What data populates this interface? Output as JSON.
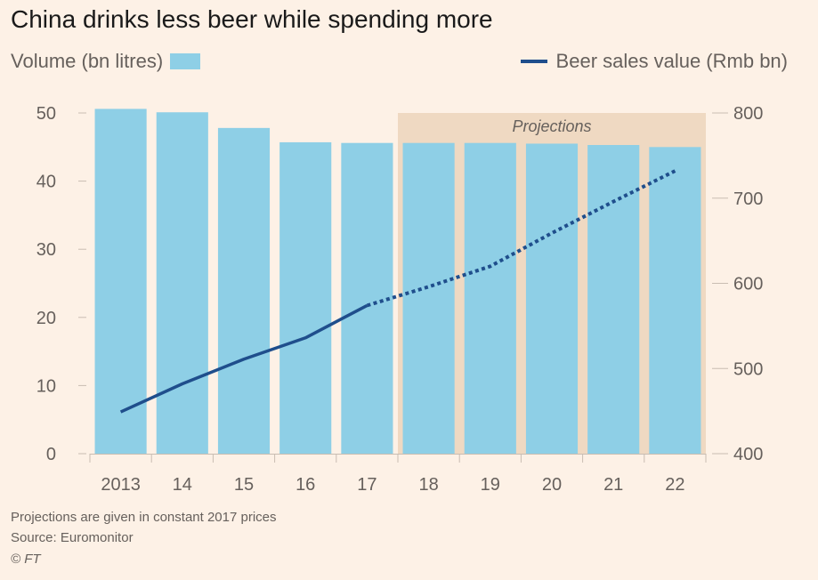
{
  "chart_data": {
    "type": "bar",
    "title": "China drinks less beer while spending more",
    "categories": [
      "2013",
      "14",
      "15",
      "16",
      "17",
      "18",
      "19",
      "20",
      "21",
      "22"
    ],
    "series": [
      {
        "name": "Volume (bn litres)",
        "type": "bar",
        "axis": "left",
        "color": "#8ecfe6",
        "values": [
          50.6,
          50.1,
          47.8,
          45.7,
          45.6,
          45.6,
          45.6,
          45.5,
          45.3,
          45.0
        ]
      },
      {
        "name": "Beer sales value (Rmb bn)",
        "type": "line",
        "axis": "right",
        "color": "#1f4e8c",
        "values": [
          449,
          482,
          511,
          536,
          574,
          596,
          620,
          659,
          696,
          732
        ]
      }
    ],
    "y_left": {
      "min": 0,
      "max": 50,
      "ticks": [
        0,
        10,
        20,
        30,
        40,
        50
      ]
    },
    "y_right": {
      "min": 400,
      "max": 800,
      "ticks": [
        400,
        500,
        600,
        700,
        800
      ]
    },
    "projection": {
      "label": "Projections",
      "start_category": "18",
      "end_category": "22"
    }
  },
  "footer": {
    "note": "Projections are given in constant 2017 prices",
    "source": "Source: Euromonitor",
    "credit": "© FT"
  }
}
